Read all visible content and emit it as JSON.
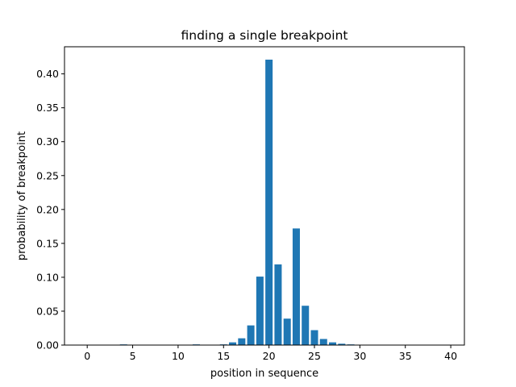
{
  "chart_data": {
    "type": "bar",
    "title": "finding a single breakpoint",
    "xlabel": "position in sequence",
    "ylabel": "probability of breakpoint",
    "xlim": [
      -2.5,
      41.5
    ],
    "ylim": [
      0,
      0.44
    ],
    "x_ticks": [
      0,
      5,
      10,
      15,
      20,
      25,
      30,
      35,
      40
    ],
    "y_ticks": [
      0.0,
      0.05,
      0.1,
      0.15,
      0.2,
      0.25,
      0.3,
      0.35,
      0.4
    ],
    "y_tick_labels": [
      "0.00",
      "0.05",
      "0.10",
      "0.15",
      "0.20",
      "0.25",
      "0.30",
      "0.35",
      "0.40"
    ],
    "x": [
      0,
      1,
      2,
      3,
      4,
      5,
      6,
      7,
      8,
      9,
      10,
      11,
      12,
      13,
      14,
      15,
      16,
      17,
      18,
      19,
      20,
      21,
      22,
      23,
      24,
      25,
      26,
      27,
      28,
      29,
      30,
      31,
      32,
      33,
      34,
      35,
      36,
      37,
      38,
      39,
      40
    ],
    "values": [
      0,
      0,
      0,
      0,
      0.001,
      0,
      0,
      0,
      0,
      0,
      0,
      0,
      0.001,
      0,
      0,
      0.001,
      0.004,
      0.01,
      0.029,
      0.101,
      0.421,
      0.119,
      0.039,
      0.172,
      0.058,
      0.022,
      0.009,
      0.004,
      0.002,
      0.001,
      0,
      0,
      0,
      0,
      0,
      0,
      0,
      0,
      0,
      0,
      0
    ],
    "bar_color": "#1f77b4",
    "grid": false
  }
}
